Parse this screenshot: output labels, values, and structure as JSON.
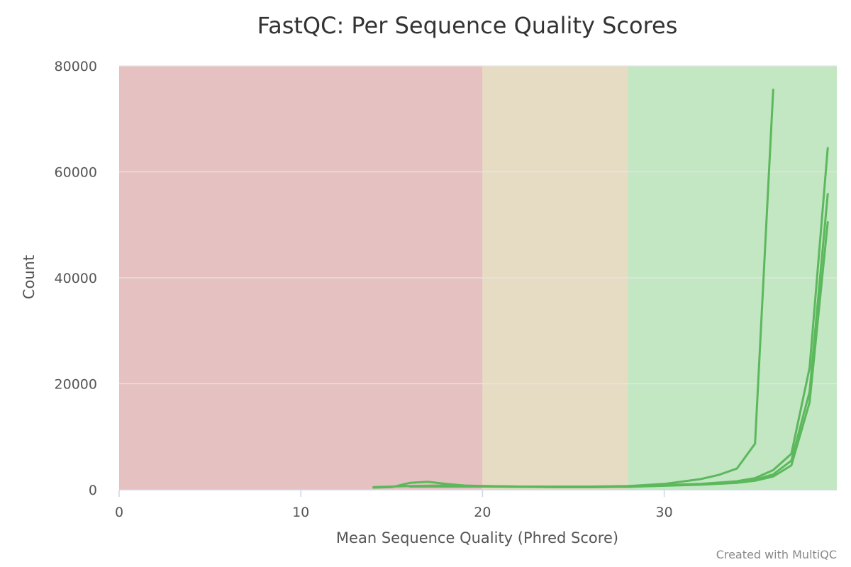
{
  "chart_data": {
    "type": "line",
    "title": "FastQC: Per Sequence Quality Scores",
    "xlabel": "Mean Sequence Quality (Phred Score)",
    "ylabel": "Count",
    "xlim": [
      0,
      39.5
    ],
    "ylim": [
      0,
      80000
    ],
    "x_ticks": [
      0,
      10,
      20,
      30
    ],
    "y_ticks": [
      0,
      20000,
      40000,
      60000,
      80000
    ],
    "grid": true,
    "legend": "none",
    "line_color": "#5cb85c",
    "bands": [
      {
        "from": 0,
        "to": 20,
        "color": "#e6c1c1"
      },
      {
        "from": 20,
        "to": 28,
        "color": "#e6dcc3"
      },
      {
        "from": 28,
        "to": 39.5,
        "color": "#c3e6c3"
      }
    ],
    "series": [
      {
        "x": [
          14,
          15,
          16,
          17,
          18,
          19,
          20,
          22,
          24,
          26,
          28,
          30,
          32,
          33,
          34,
          35,
          36
        ],
        "y": [
          400,
          500,
          1300,
          1500,
          1100,
          800,
          700,
          600,
          600,
          600,
          700,
          1100,
          2000,
          2800,
          4000,
          8700,
          75500
        ]
      },
      {
        "x": [
          14,
          16,
          18,
          20,
          22,
          24,
          26,
          28,
          30,
          32,
          34,
          35,
          36,
          37,
          38,
          39
        ],
        "y": [
          500,
          700,
          800,
          700,
          600,
          500,
          500,
          600,
          900,
          1100,
          1600,
          2200,
          3700,
          6800,
          23000,
          64500
        ]
      },
      {
        "x": [
          16,
          18,
          20,
          22,
          24,
          26,
          28,
          30,
          32,
          34,
          35,
          36,
          37,
          38,
          39
        ],
        "y": [
          600,
          600,
          600,
          550,
          500,
          500,
          550,
          800,
          1000,
          1400,
          1900,
          2900,
          5500,
          18500,
          55800
        ]
      },
      {
        "x": [
          18,
          20,
          22,
          24,
          26,
          28,
          30,
          32,
          34,
          35,
          36,
          37,
          38,
          39
        ],
        "y": [
          600,
          600,
          550,
          500,
          500,
          550,
          750,
          950,
          1300,
          1700,
          2500,
          4600,
          16500,
          50500
        ]
      }
    ]
  },
  "credit": "Created with MultiQC"
}
